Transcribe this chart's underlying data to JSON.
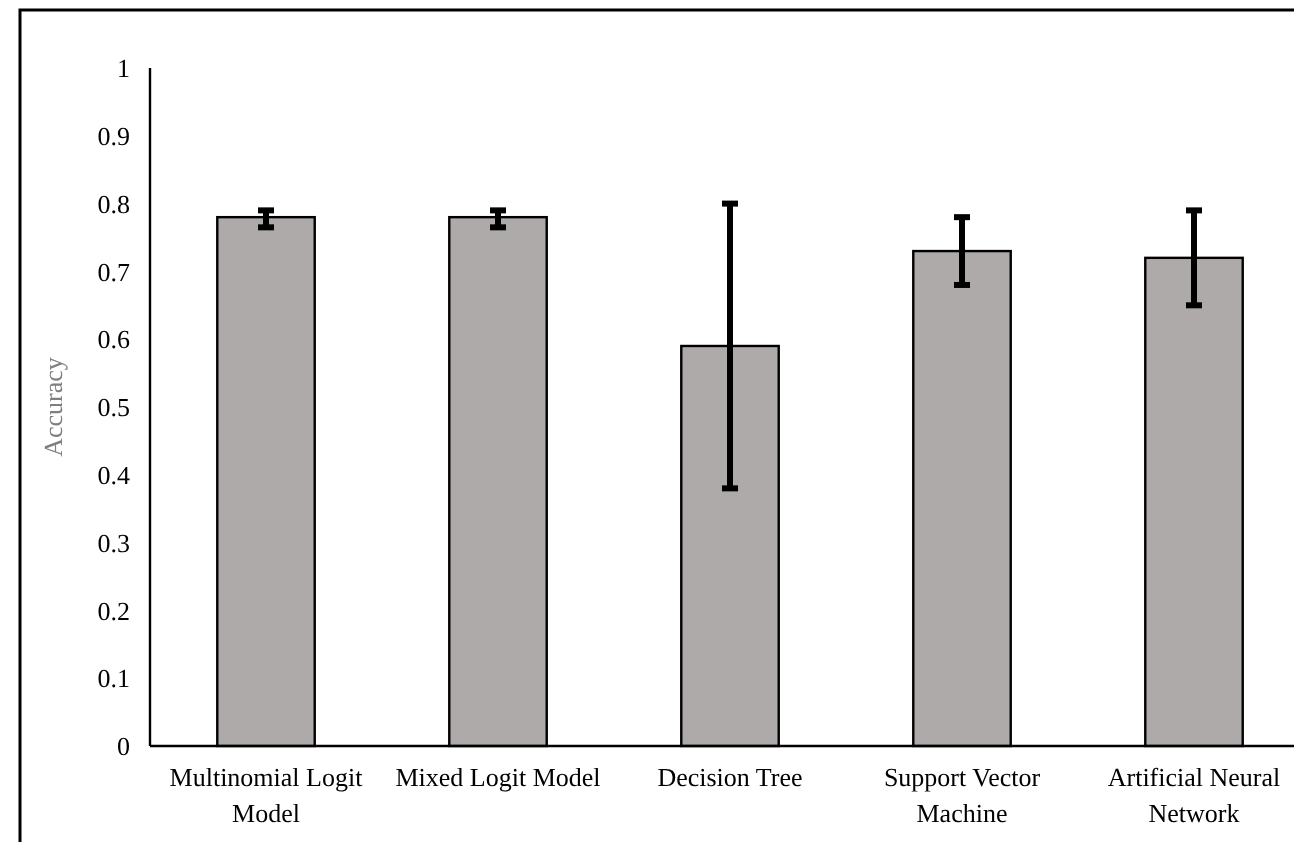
{
  "chart_data": {
    "type": "bar",
    "ylabel": "Accuracy",
    "categories": [
      "Multinomial Logit Model",
      "Mixed Logit Model",
      "Decision Tree",
      "Support Vector Machine",
      "Artificial Neural Network"
    ],
    "values": [
      0.78,
      0.78,
      0.59,
      0.73,
      0.72
    ],
    "errors": [
      [
        0.765,
        0.79
      ],
      [
        0.765,
        0.79
      ],
      [
        0.38,
        0.8
      ],
      [
        0.68,
        0.78
      ],
      [
        0.65,
        0.79
      ]
    ],
    "color": "#aeaaaa",
    "ylim": [
      0,
      1
    ],
    "yticks": [
      0,
      0.1,
      0.2,
      0.3,
      0.4,
      0.5,
      0.6,
      0.7,
      0.8,
      0.9,
      1
    ],
    "grid": false
  }
}
